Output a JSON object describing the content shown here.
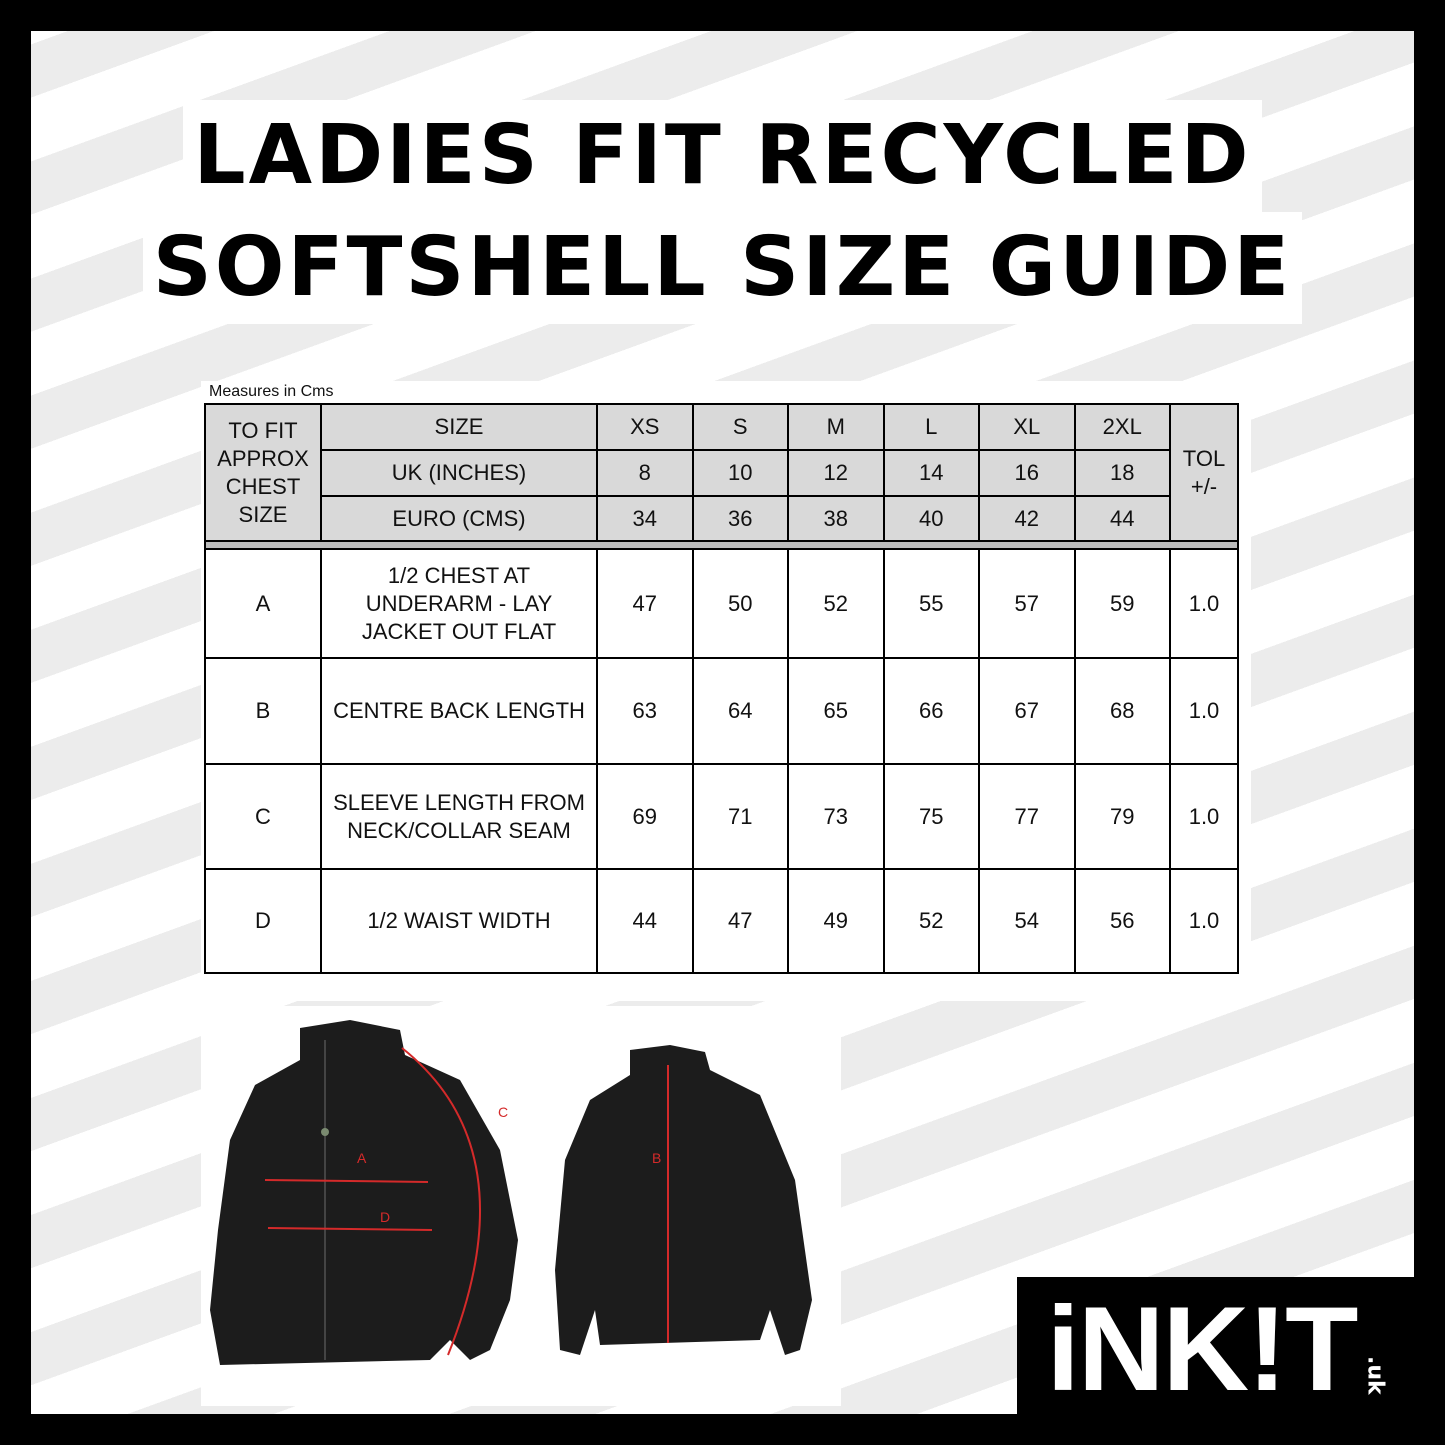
{
  "title": {
    "line1": "Ladies Fit Recycled",
    "line2": "Softshell Size Guide"
  },
  "measures_note": "Measures in Cms",
  "table": {
    "header_label": "TO FIT APPROX CHEST SIZE",
    "size_label": "SIZE",
    "uk_label": "UK (INCHES)",
    "euro_label": "EURO (CMS)",
    "tol_label": "TOL +/-",
    "sizes": [
      "XS",
      "S",
      "M",
      "L",
      "XL",
      "2XL"
    ],
    "uk": [
      "8",
      "10",
      "12",
      "14",
      "16",
      "18"
    ],
    "euro": [
      "34",
      "36",
      "38",
      "40",
      "42",
      "44"
    ],
    "rows": [
      {
        "code": "A",
        "desc": "1/2 CHEST AT UNDERARM - LAY JACKET OUT FLAT",
        "values": [
          "47",
          "50",
          "52",
          "55",
          "57",
          "59"
        ],
        "tol": "1.0"
      },
      {
        "code": "B",
        "desc": "CENTRE BACK LENGTH",
        "values": [
          "63",
          "64",
          "65",
          "66",
          "67",
          "68"
        ],
        "tol": "1.0"
      },
      {
        "code": "C",
        "desc": "SLEEVE LENGTH FROM NECK/COLLAR SEAM",
        "values": [
          "69",
          "71",
          "73",
          "75",
          "77",
          "79"
        ],
        "tol": "1.0"
      },
      {
        "code": "D",
        "desc": "1/2 WAIST WIDTH",
        "values": [
          "44",
          "47",
          "49",
          "52",
          "54",
          "56"
        ],
        "tol": "1.0"
      }
    ]
  },
  "diagram_labels": {
    "a": "A",
    "b": "B",
    "c": "C",
    "d": "D"
  },
  "logo": {
    "text": "iNK!T",
    "suffix": ".uk"
  },
  "colors": {
    "measure_line": "#d42a2a",
    "header_bg": "#d9d9d9",
    "watermark": "#e4e4e4"
  }
}
